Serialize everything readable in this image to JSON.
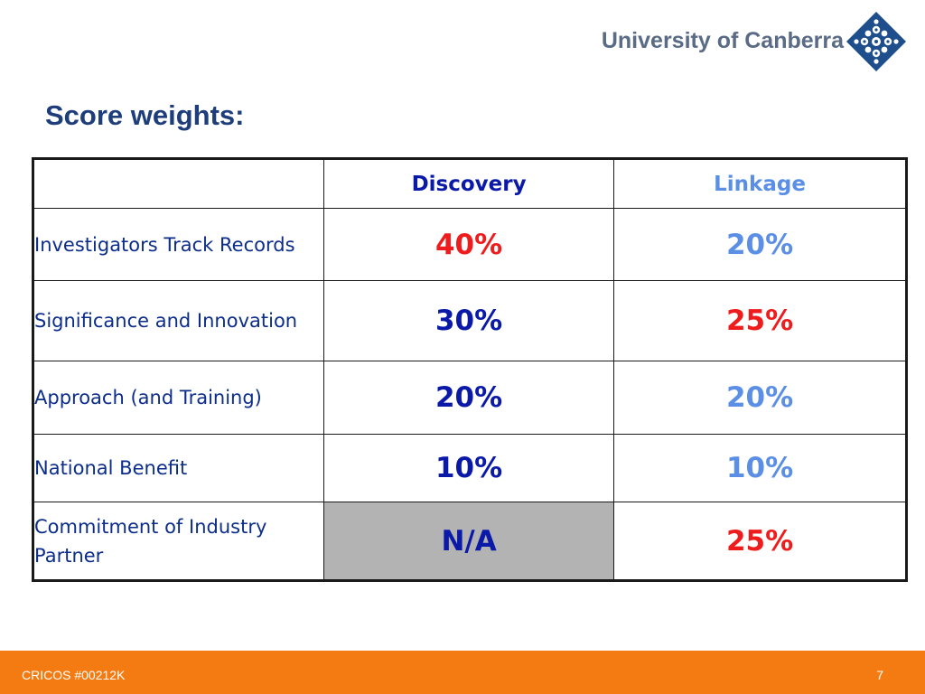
{
  "header": {
    "logo_text": "University of Canberra",
    "logo_icon": "university-crest-diamond",
    "colors": {
      "logo_text": "#5a6b86",
      "logo_mark": "#1e4e8c"
    }
  },
  "title": "Score weights:",
  "table": {
    "columns": [
      "",
      "Discovery",
      "Linkage"
    ],
    "rows": [
      {
        "criterion": "Investigators Track Records",
        "discovery": "40%",
        "linkage": "20%"
      },
      {
        "criterion": "Significance and Innovation",
        "discovery": "30%",
        "linkage": "25%"
      },
      {
        "criterion": "Approach (and Training)",
        "discovery": "20%",
        "linkage": "20%"
      },
      {
        "criterion": "National Benefit",
        "discovery": "10%",
        "linkage": "10%"
      },
      {
        "criterion": "Commitment of Industry Partner",
        "discovery": "N/A",
        "linkage": "25%"
      }
    ],
    "colors": {
      "discovery_header": "#0a19a8",
      "linkage_header": "#5b8fe6",
      "highlight_red": "#ee1c1c",
      "navy": "#0a19a8",
      "light_blue": "#5b8fe6",
      "na_background": "#b3b3b3"
    }
  },
  "footer": {
    "left": "CRICOS #00212K",
    "right": "7",
    "background": "#f47b12"
  }
}
